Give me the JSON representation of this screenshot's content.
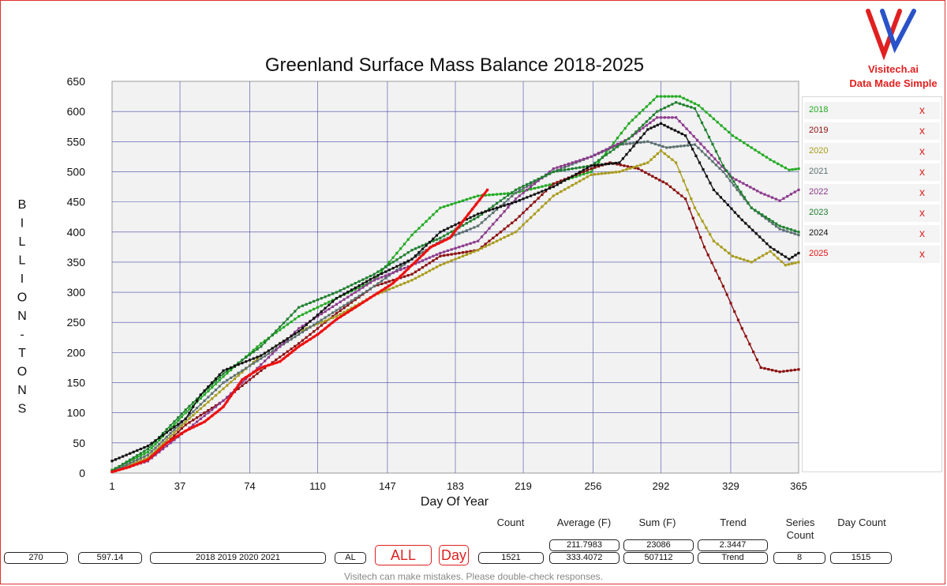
{
  "chart_data": {
    "type": "line",
    "title": "Greenland Surface Mass Balance 2018-2025",
    "xlabel": "Day Of Year",
    "ylabel": "BILLION-TONS",
    "xlim": [
      1,
      365
    ],
    "ylim": [
      0,
      650
    ],
    "x_ticks": [
      "1",
      "37",
      "74",
      "110",
      "147",
      "183",
      "219",
      "256",
      "292",
      "329",
      "365"
    ],
    "y_ticks": [
      "0",
      "50",
      "100",
      "150",
      "200",
      "250",
      "300",
      "350",
      "400",
      "450",
      "500",
      "550",
      "600",
      "650"
    ],
    "grid": true,
    "legend_placement": "right",
    "series": [
      {
        "name": "2018",
        "color": "#22aa22",
        "points": [
          [
            1,
            5
          ],
          [
            20,
            35
          ],
          [
            40,
            100
          ],
          [
            60,
            160
          ],
          [
            80,
            215
          ],
          [
            100,
            260
          ],
          [
            120,
            290
          ],
          [
            140,
            320
          ],
          [
            160,
            395
          ],
          [
            175,
            440
          ],
          [
            195,
            460
          ],
          [
            215,
            465
          ],
          [
            235,
            480
          ],
          [
            255,
            500
          ],
          [
            275,
            580
          ],
          [
            290,
            625
          ],
          [
            302,
            625
          ],
          [
            312,
            610
          ],
          [
            330,
            560
          ],
          [
            350,
            520
          ],
          [
            360,
            503
          ],
          [
            365,
            505
          ]
        ]
      },
      {
        "name": "2019",
        "color": "#8b1010",
        "points": [
          [
            1,
            2
          ],
          [
            20,
            20
          ],
          [
            40,
            80
          ],
          [
            60,
            120
          ],
          [
            80,
            170
          ],
          [
            100,
            215
          ],
          [
            120,
            265
          ],
          [
            140,
            310
          ],
          [
            160,
            330
          ],
          [
            175,
            360
          ],
          [
            195,
            370
          ],
          [
            215,
            420
          ],
          [
            235,
            480
          ],
          [
            255,
            505
          ],
          [
            265,
            515
          ],
          [
            280,
            505
          ],
          [
            295,
            480
          ],
          [
            305,
            455
          ],
          [
            315,
            375
          ],
          [
            325,
            310
          ],
          [
            335,
            240
          ],
          [
            345,
            175
          ],
          [
            355,
            168
          ],
          [
            365,
            172
          ]
        ]
      },
      {
        "name": "2020",
        "color": "#a89c1c",
        "points": [
          [
            1,
            3
          ],
          [
            20,
            25
          ],
          [
            40,
            85
          ],
          [
            60,
            140
          ],
          [
            80,
            195
          ],
          [
            100,
            235
          ],
          [
            120,
            260
          ],
          [
            140,
            295
          ],
          [
            160,
            320
          ],
          [
            175,
            345
          ],
          [
            195,
            370
          ],
          [
            215,
            400
          ],
          [
            235,
            460
          ],
          [
            255,
            495
          ],
          [
            270,
            500
          ],
          [
            285,
            515
          ],
          [
            292,
            535
          ],
          [
            300,
            515
          ],
          [
            310,
            440
          ],
          [
            320,
            385
          ],
          [
            330,
            360
          ],
          [
            340,
            350
          ],
          [
            350,
            368
          ],
          [
            358,
            345
          ],
          [
            365,
            350
          ]
        ]
      },
      {
        "name": "2021",
        "color": "#5c7070",
        "points": [
          [
            1,
            3
          ],
          [
            20,
            30
          ],
          [
            40,
            90
          ],
          [
            60,
            150
          ],
          [
            80,
            190
          ],
          [
            100,
            230
          ],
          [
            120,
            270
          ],
          [
            140,
            310
          ],
          [
            160,
            355
          ],
          [
            175,
            385
          ],
          [
            195,
            410
          ],
          [
            215,
            465
          ],
          [
            235,
            500
          ],
          [
            255,
            525
          ],
          [
            270,
            545
          ],
          [
            285,
            550
          ],
          [
            295,
            540
          ],
          [
            310,
            545
          ],
          [
            325,
            500
          ],
          [
            340,
            440
          ],
          [
            355,
            405
          ],
          [
            365,
            395
          ]
        ]
      },
      {
        "name": "2022",
        "color": "#8c3a8c",
        "points": [
          [
            1,
            2
          ],
          [
            20,
            20
          ],
          [
            40,
            70
          ],
          [
            60,
            120
          ],
          [
            80,
            180
          ],
          [
            100,
            240
          ],
          [
            120,
            280
          ],
          [
            140,
            320
          ],
          [
            160,
            345
          ],
          [
            175,
            365
          ],
          [
            195,
            385
          ],
          [
            215,
            455
          ],
          [
            235,
            505
          ],
          [
            255,
            525
          ],
          [
            275,
            555
          ],
          [
            290,
            590
          ],
          [
            300,
            590
          ],
          [
            315,
            540
          ],
          [
            330,
            490
          ],
          [
            345,
            465
          ],
          [
            355,
            452
          ],
          [
            365,
            470
          ]
        ]
      },
      {
        "name": "2023",
        "color": "#1f7f2f",
        "points": [
          [
            1,
            4
          ],
          [
            20,
            40
          ],
          [
            40,
            105
          ],
          [
            60,
            165
          ],
          [
            80,
            210
          ],
          [
            100,
            275
          ],
          [
            120,
            300
          ],
          [
            140,
            330
          ],
          [
            160,
            370
          ],
          [
            175,
            390
          ],
          [
            195,
            425
          ],
          [
            215,
            470
          ],
          [
            235,
            500
          ],
          [
            255,
            510
          ],
          [
            275,
            555
          ],
          [
            290,
            600
          ],
          [
            300,
            615
          ],
          [
            310,
            605
          ],
          [
            325,
            510
          ],
          [
            340,
            440
          ],
          [
            355,
            410
          ],
          [
            365,
            400
          ]
        ]
      },
      {
        "name": "2024",
        "color": "#111111",
        "points": [
          [
            1,
            20
          ],
          [
            20,
            45
          ],
          [
            40,
            90
          ],
          [
            48,
            130
          ],
          [
            60,
            170
          ],
          [
            80,
            195
          ],
          [
            100,
            235
          ],
          [
            120,
            290
          ],
          [
            140,
            325
          ],
          [
            160,
            355
          ],
          [
            175,
            400
          ],
          [
            195,
            430
          ],
          [
            215,
            450
          ],
          [
            235,
            475
          ],
          [
            255,
            510
          ],
          [
            270,
            515
          ],
          [
            285,
            570
          ],
          [
            292,
            580
          ],
          [
            305,
            560
          ],
          [
            320,
            470
          ],
          [
            335,
            420
          ],
          [
            350,
            375
          ],
          [
            360,
            355
          ],
          [
            365,
            365
          ]
        ]
      },
      {
        "name": "2025",
        "color": "#ee1111",
        "points": [
          [
            1,
            2
          ],
          [
            10,
            10
          ],
          [
            20,
            22
          ],
          [
            30,
            50
          ],
          [
            40,
            70
          ],
          [
            50,
            85
          ],
          [
            60,
            110
          ],
          [
            70,
            155
          ],
          [
            80,
            175
          ],
          [
            90,
            185
          ],
          [
            100,
            210
          ],
          [
            110,
            230
          ],
          [
            120,
            255
          ],
          [
            130,
            275
          ],
          [
            140,
            295
          ],
          [
            150,
            315
          ],
          [
            160,
            345
          ],
          [
            170,
            375
          ],
          [
            180,
            390
          ],
          [
            190,
            430
          ],
          [
            200,
            470
          ]
        ]
      }
    ]
  },
  "brand": {
    "name": "Visitech.ai",
    "tagline": "Data Made Simple",
    "logo_red": "#e02020",
    "logo_blue": "#2a52c8"
  },
  "legend": {
    "remove_label": "x"
  },
  "stats": {
    "headers": {
      "count": "Count",
      "average": "Average (F)",
      "sum": "Sum (F)",
      "trend": "Trend",
      "series_count": "Series Count",
      "day_count": "Day Count"
    },
    "left_fields": [
      "270",
      "597.14",
      "2018 2019 2020 2021",
      "AL"
    ],
    "all_button": "ALL",
    "day_button": "Day",
    "count": "1521",
    "average_top": "211.7983",
    "average": "333.4072",
    "sum_top": "23086",
    "sum": "507112",
    "trend_top": "2.3447",
    "trend": "Trend",
    "series_count": "8",
    "day_count": "1515"
  },
  "footer": "Visitech can make mistakes. Please double-check responses."
}
